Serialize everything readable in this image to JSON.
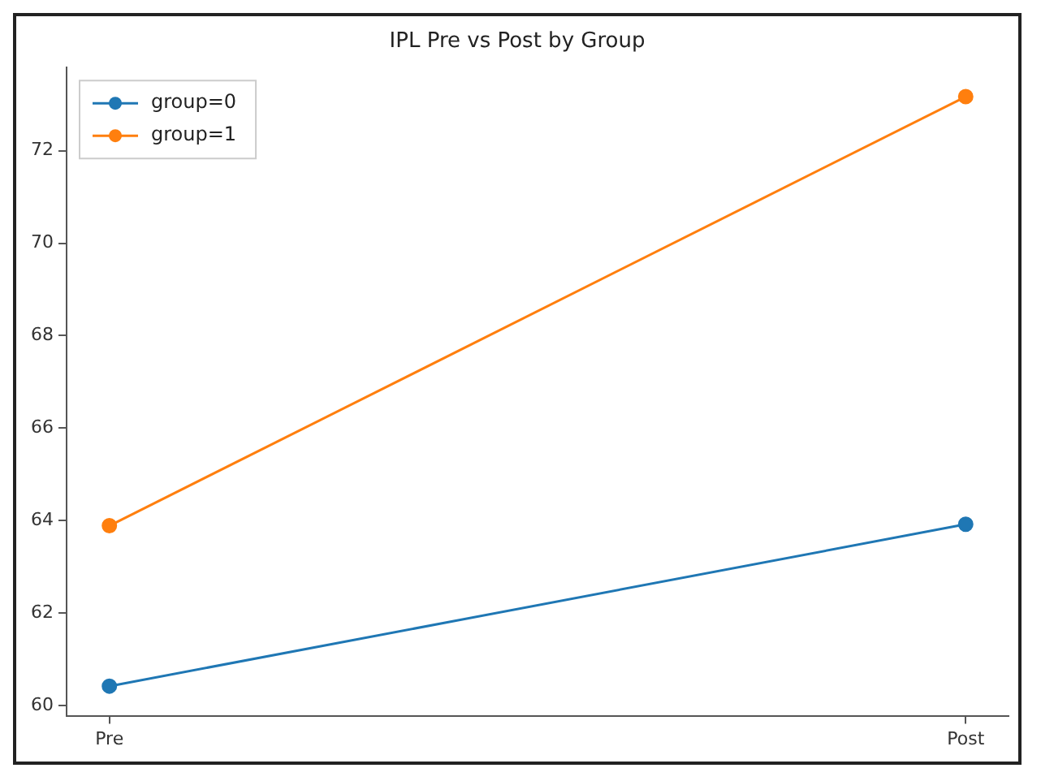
{
  "chart_data": {
    "type": "line",
    "title": "IPL Pre vs Post by Group",
    "categories": [
      "Pre",
      "Post"
    ],
    "series": [
      {
        "name": "group=0",
        "color": "#1f77b4",
        "values": [
          60.42,
          63.92
        ]
      },
      {
        "name": "group=1",
        "color": "#ff7f0e",
        "values": [
          63.89,
          73.17
        ]
      }
    ],
    "ylim": [
      59.78,
      73.8
    ],
    "yticks": [
      60,
      62,
      64,
      66,
      68,
      70,
      72
    ],
    "grid": false,
    "legend": "top left",
    "marker": "circle",
    "line_style": "solid"
  }
}
